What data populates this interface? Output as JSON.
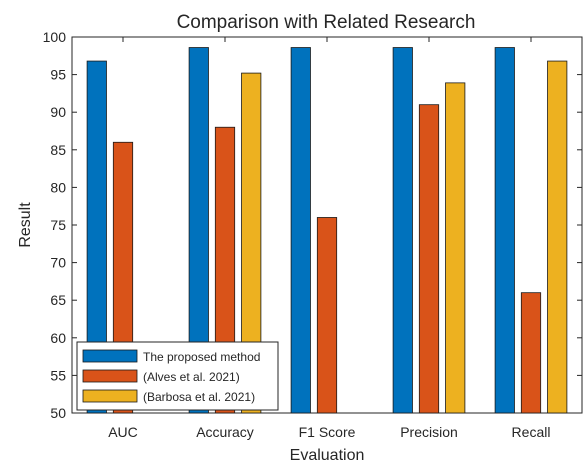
{
  "chart_data": {
    "type": "bar",
    "title": "Comparison with Related Research",
    "xlabel": "Evaluation",
    "ylabel": "Result",
    "ylim": [
      50,
      100
    ],
    "yticks": [
      "50",
      "55",
      "60",
      "65",
      "70",
      "75",
      "80",
      "85",
      "90",
      "95",
      "100"
    ],
    "categories": [
      "AUC",
      "Accuracy",
      "F1 Score",
      "Precision",
      "Recall"
    ],
    "series": [
      {
        "name": "The proposed method",
        "color": "#0072BD",
        "values": [
          96.8,
          98.6,
          98.6,
          98.6,
          98.6
        ]
      },
      {
        "name": "(Alves et al. 2021)",
        "color": "#D95319",
        "values": [
          86.0,
          88.0,
          76.0,
          91.0,
          66.0
        ]
      },
      {
        "name": "(Barbosa et al. 2021)",
        "color": "#EDB120",
        "values": [
          null,
          95.2,
          null,
          93.9,
          96.8
        ]
      }
    ],
    "grid": false,
    "legend_position": "bottom-left"
  }
}
